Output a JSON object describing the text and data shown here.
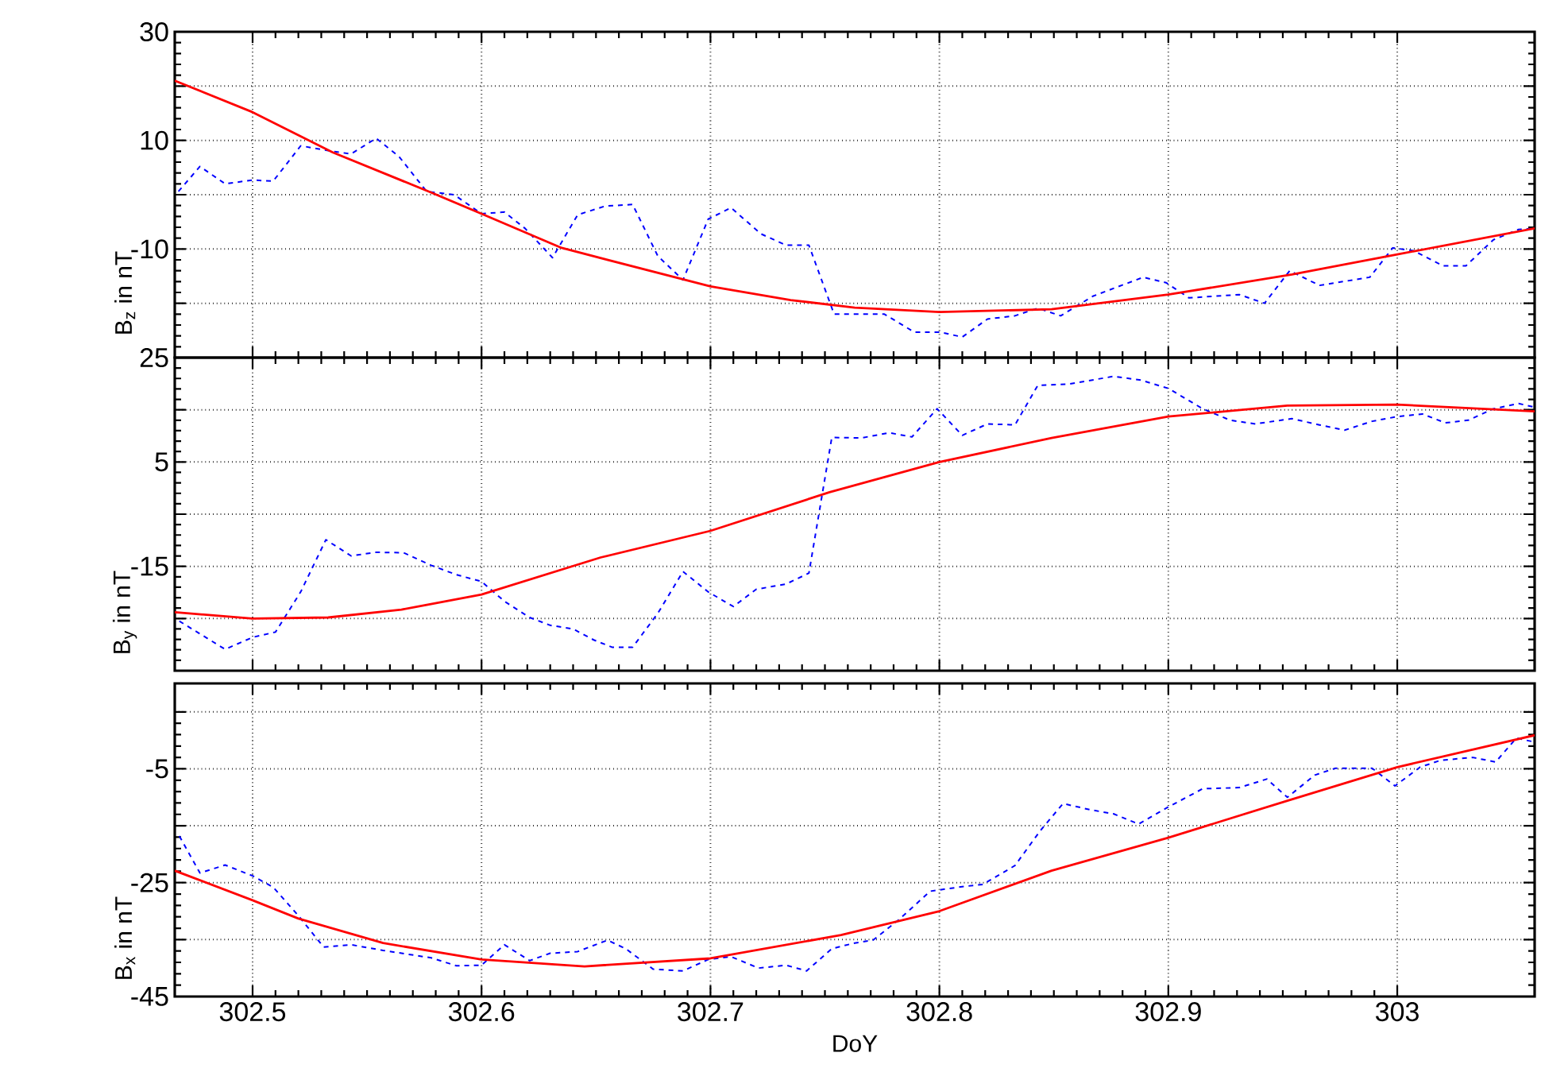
{
  "chart_data": [
    {
      "type": "line",
      "ylabel": "B$_{z}$ in nT",
      "xlim": [
        302.466,
        303.06
      ],
      "ylim": [
        -30,
        30
      ],
      "grid": true,
      "tick_labels": "y",
      "xticks": [
        302.5,
        302.6,
        302.7,
        302.8,
        302.9,
        303
      ],
      "yticks": [
        30,
        {
          "value": 20,
          "label": null
        },
        10,
        {
          "value": 0,
          "label": null
        },
        -10,
        {
          "value": -20,
          "label": null
        },
        {
          "value": -30,
          "label": null
        }
      ],
      "series": [
        {
          "color": "#0000ff",
          "line_style": "dashed",
          "x": [
            302.4676,
            302.477,
            302.488,
            302.5,
            302.509,
            302.521,
            302.535,
            302.543,
            302.554,
            302.564,
            302.576,
            302.588,
            302.6,
            302.61,
            302.619,
            302.631,
            302.642,
            302.654,
            302.666,
            302.677,
            302.688,
            302.699,
            302.709,
            302.722,
            302.733,
            302.743,
            302.754,
            302.776,
            302.789,
            302.8,
            302.81,
            302.821,
            302.833,
            302.843,
            302.853,
            302.867,
            302.889,
            302.899,
            302.909,
            302.931,
            302.942,
            302.953,
            302.966,
            302.988,
            302.998,
            303.007,
            303.02,
            303.03,
            303.042,
            303.053,
            303.06
          ],
          "values": [
            0.6,
            5.2,
            2,
            2.7,
            2.5,
            9,
            8,
            7.5,
            10.4,
            7,
            0.6,
            0,
            -3.5,
            -3.2,
            -6.2,
            -11.6,
            -3.7,
            -2.1,
            -1.8,
            -11.3,
            -15.7,
            -4.5,
            -2.4,
            -7.2,
            -9.3,
            -9.3,
            -22,
            -22,
            -25.3,
            -25.3,
            -26.2,
            -22.9,
            -22.3,
            -20.9,
            -22.3,
            -18.7,
            -15.2,
            -16.2,
            -19,
            -18.4,
            -20,
            -14,
            -16.7,
            -15.2,
            -9.8,
            -10.3,
            -13.1,
            -13.1,
            -8.3,
            -6.4,
            -6.2
          ]
        },
        {
          "color": "#ff0000",
          "line_style": "solid",
          "x": [
            302.466,
            302.5,
            302.535,
            302.578,
            302.6,
            302.635,
            302.7,
            302.735,
            302.763,
            302.8,
            302.849,
            302.9,
            302.954,
            303,
            303.06
          ],
          "values": [
            21,
            15.2,
            7.8,
            0.4,
            -3.5,
            -9.8,
            -16.9,
            -19.4,
            -20.8,
            -21.6,
            -21.1,
            -18.4,
            -14.7,
            -11,
            -6.2
          ]
        }
      ]
    },
    {
      "type": "line",
      "ylabel": "B$_{y}$ in nT",
      "xlim": [
        302.466,
        303.06
      ],
      "ylim": [
        -35,
        25
      ],
      "grid": true,
      "tick_labels": "y",
      "xticks": [
        302.5,
        302.6,
        302.7,
        302.8,
        302.9,
        303
      ],
      "yticks": [
        25,
        {
          "value": 15,
          "label": null
        },
        5,
        {
          "value": -5,
          "label": null
        },
        -15,
        {
          "value": -25,
          "label": null
        },
        {
          "value": -35,
          "label": null
        }
      ],
      "series": [
        {
          "color": "#0000ff",
          "line_style": "dashed",
          "x": [
            302.468,
            302.488,
            302.5,
            302.51,
            302.521,
            302.532,
            302.543,
            302.554,
            302.566,
            302.578,
            302.589,
            302.6,
            302.61,
            302.621,
            302.63,
            302.64,
            302.649,
            302.657,
            302.666,
            302.677,
            302.688,
            302.699,
            302.71,
            302.72,
            302.733,
            302.743,
            302.753,
            302.766,
            302.778,
            302.788,
            302.799,
            302.81,
            302.821,
            302.833,
            302.843,
            302.856,
            302.876,
            302.888,
            302.9,
            302.915,
            302.927,
            302.938,
            302.954,
            302.966,
            302.977,
            302.989,
            303,
            303.011,
            303.021,
            303.031,
            303.042,
            303.053,
            303.06
          ],
          "values": [
            -25.5,
            -30.9,
            -28.6,
            -27.6,
            -19.9,
            -9.9,
            -13,
            -12.3,
            -12.4,
            -14.8,
            -16.6,
            -17.9,
            -21.7,
            -24.8,
            -26.3,
            -27,
            -29.1,
            -30.5,
            -30.5,
            -24,
            -16,
            -19.9,
            -22.7,
            -19.4,
            -18.4,
            -16.3,
            9.7,
            9.6,
            10.6,
            9.8,
            15.2,
            10.1,
            12.3,
            12.1,
            19.7,
            19.9,
            21.4,
            20.7,
            19.1,
            15.2,
            13,
            12.3,
            13.3,
            12.1,
            11.1,
            12.8,
            13.7,
            14.2,
            12.5,
            13,
            15.2,
            16.2,
            15.5
          ]
        },
        {
          "color": "#ff0000",
          "line_style": "solid",
          "x": [
            302.466,
            302.5,
            302.533,
            302.565,
            302.6,
            302.652,
            302.7,
            302.752,
            302.8,
            302.849,
            302.9,
            302.952,
            303,
            303.06
          ],
          "values": [
            -23.8,
            -25,
            -24.8,
            -23.3,
            -20.4,
            -13.3,
            -8.2,
            -0.8,
            5,
            9.6,
            13.7,
            15.8,
            16,
            14.7
          ]
        }
      ]
    },
    {
      "type": "line",
      "xlabel": "DoY",
      "ylabel": "B$_{x}$ in nT",
      "xlim": [
        302.466,
        303.06
      ],
      "ylim": [
        -45,
        10
      ],
      "grid": true,
      "xticks": [
        302.5,
        302.6,
        302.7,
        302.8,
        302.9,
        303
      ],
      "yticks": [
        {
          "value": 5,
          "label": null
        },
        -5,
        {
          "value": -15,
          "label": null
        },
        -25,
        {
          "value": -35,
          "label": null
        },
        -45
      ],
      "series": [
        {
          "color": "#0000ff",
          "line_style": "dashed",
          "x": [
            302.468,
            302.477,
            302.488,
            302.5,
            302.509,
            302.52,
            302.531,
            302.543,
            302.557,
            302.578,
            302.589,
            302.6,
            302.61,
            302.621,
            302.63,
            302.642,
            302.655,
            302.663,
            302.675,
            302.688,
            302.699,
            302.709,
            302.721,
            302.733,
            302.742,
            302.753,
            302.763,
            302.771,
            302.782,
            302.796,
            302.81,
            302.819,
            302.833,
            302.844,
            302.854,
            302.866,
            302.876,
            302.887,
            302.9,
            302.915,
            302.931,
            302.943,
            302.952,
            302.964,
            302.973,
            302.989,
            302.999,
            303.01,
            303.019,
            303.033,
            303.043,
            303.052,
            303.06
          ],
          "values": [
            -16.8,
            -23.3,
            -21.9,
            -23.8,
            -25.8,
            -30.8,
            -36.3,
            -35.9,
            -36.9,
            -38.2,
            -39.6,
            -39.5,
            -35.9,
            -38.7,
            -37.4,
            -37.1,
            -35.1,
            -36.6,
            -40.2,
            -40.5,
            -38.5,
            -38,
            -40,
            -39.5,
            -40.5,
            -36.6,
            -35.6,
            -35.1,
            -31.6,
            -26.5,
            -25.7,
            -25.3,
            -22,
            -15.9,
            -11.1,
            -12.2,
            -12.9,
            -14.7,
            -11.7,
            -8.5,
            -8.3,
            -6.8,
            -10,
            -6.1,
            -4.9,
            -4.9,
            -8,
            -4.7,
            -3.5,
            -3,
            -3.8,
            0.4,
            -0.3
          ]
        },
        {
          "color": "#ff0000",
          "line_style": "solid",
          "x": [
            302.466,
            302.5,
            302.52,
            302.557,
            302.6,
            302.645,
            302.7,
            302.757,
            302.8,
            302.849,
            302.9,
            302.952,
            303,
            303.06
          ],
          "values": [
            -22.9,
            -28.1,
            -31.3,
            -35.6,
            -38.5,
            -39.7,
            -38.3,
            -34.2,
            -30,
            -22.9,
            -17.1,
            -10.6,
            -4.7,
            0.9
          ]
        }
      ]
    }
  ]
}
